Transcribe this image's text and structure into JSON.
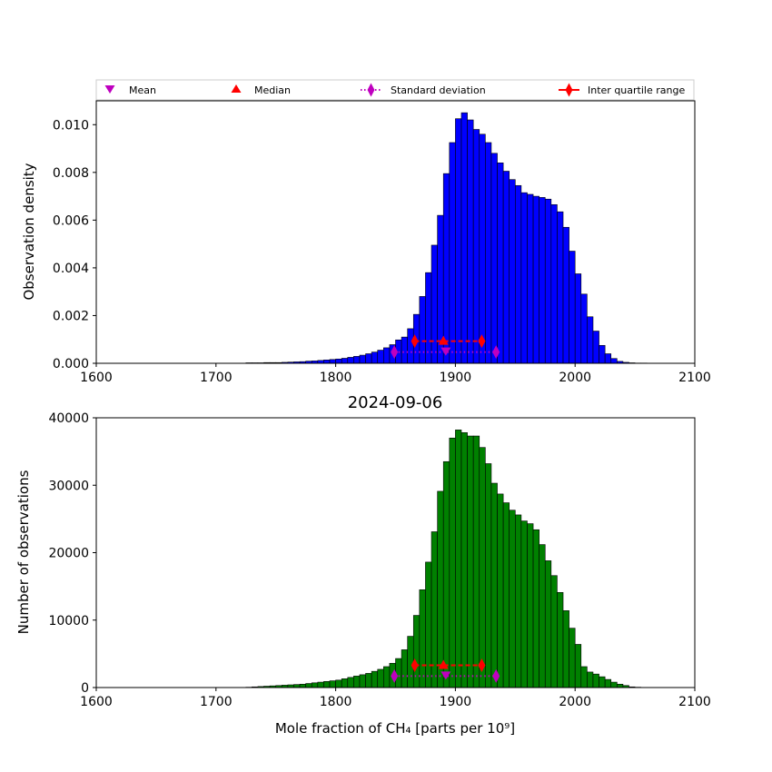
{
  "colors": {
    "density_bars": "#0000ff",
    "count_bars": "#008000",
    "bar_edge": "#000000",
    "mean_marker": "#bf00bf",
    "std_marker": "#bf00bf",
    "median_marker": "#ff0000",
    "iqr_marker": "#ff0000"
  },
  "legend": {
    "placement": "top, above upper chart",
    "entries": [
      {
        "label": "Mean",
        "marker": "triangle-down",
        "color": "#bf00bf"
      },
      {
        "label": "Median",
        "marker": "triangle-up",
        "color": "#ff0000"
      },
      {
        "label": "Standard deviation",
        "marker": "diamond-dotted-line",
        "color": "#bf00bf"
      },
      {
        "label": "Inter quartile range",
        "marker": "diamond-solid-line",
        "color": "#ff0000"
      }
    ]
  },
  "chart_data": [
    {
      "type": "bar",
      "title": "",
      "xlabel": "",
      "ylabel": "Observation density",
      "xlim": [
        1600,
        2100
      ],
      "ylim": [
        0,
        0.011
      ],
      "xticks": [
        "1600",
        "1700",
        "1800",
        "1900",
        "2000",
        "2100"
      ],
      "yticks": [
        "0.000",
        "0.002",
        "0.004",
        "0.006",
        "0.008",
        "0.010"
      ],
      "yticks_values": [
        0,
        0.002,
        0.004,
        0.006,
        0.008,
        0.01
      ],
      "bin_start": 1600,
      "bin_width": 5,
      "values": [
        0,
        0,
        0,
        0,
        0,
        0,
        0,
        0,
        0,
        0,
        0,
        0,
        0,
        0,
        0,
        0,
        0,
        0,
        0,
        0,
        0,
        0,
        0,
        0,
        0,
        2e-05,
        2e-05,
        2e-05,
        3e-05,
        3e-05,
        3e-05,
        4e-05,
        5e-05,
        6e-05,
        7e-05,
        9e-05,
        0.0001,
        0.00012,
        0.00014,
        0.00016,
        0.00018,
        0.00021,
        0.00025,
        0.00029,
        0.00034,
        0.0004,
        0.00047,
        0.00055,
        0.00065,
        0.00078,
        0.00098,
        0.0011,
        0.00145,
        0.00205,
        0.0028,
        0.0038,
        0.00495,
        0.0062,
        0.00795,
        0.00925,
        0.01025,
        0.0105,
        0.0102,
        0.0098,
        0.0096,
        0.00925,
        0.0088,
        0.0084,
        0.00805,
        0.0077,
        0.00745,
        0.00715,
        0.00708,
        0.007,
        0.00695,
        0.00688,
        0.00665,
        0.00635,
        0.0057,
        0.0047,
        0.00375,
        0.0029,
        0.00195,
        0.00135,
        0.00075,
        0.0004,
        0.0002,
        8e-05,
        4e-05,
        2e-05,
        1e-05,
        1e-05,
        0,
        0,
        0,
        0,
        0,
        0,
        0,
        0
      ],
      "summary": {
        "mean": 1892,
        "std_low": 1849,
        "std_high": 1934,
        "std_y": 0.00047,
        "median": 1890,
        "iqr_low": 1866,
        "iqr_high": 1922,
        "iqr_y": 0.00093
      }
    },
    {
      "type": "bar",
      "title": "2024-09-06",
      "xlabel": "Mole fraction of CH₄ [parts per 10⁹]",
      "ylabel": "Number of observations",
      "xlim": [
        1600,
        2100
      ],
      "ylim": [
        0,
        40000
      ],
      "xticks": [
        "1600",
        "1700",
        "1800",
        "1900",
        "2000",
        "2100"
      ],
      "yticks": [
        "0",
        "10000",
        "20000",
        "30000",
        "40000"
      ],
      "yticks_values": [
        0,
        10000,
        20000,
        30000,
        40000
      ],
      "bin_start": 1600,
      "bin_width": 5,
      "values": [
        0,
        0,
        0,
        0,
        0,
        0,
        0,
        0,
        0,
        0,
        0,
        0,
        0,
        0,
        0,
        0,
        0,
        0,
        0,
        0,
        0,
        0,
        0,
        0,
        0,
        50,
        100,
        150,
        200,
        250,
        300,
        350,
        400,
        450,
        500,
        600,
        700,
        800,
        900,
        1000,
        1100,
        1300,
        1500,
        1700,
        1900,
        2100,
        2400,
        2700,
        3100,
        3600,
        4300,
        5600,
        7600,
        10700,
        14500,
        18600,
        23100,
        29100,
        33500,
        37000,
        38200,
        37800,
        37300,
        37300,
        35600,
        33200,
        30300,
        28700,
        27400,
        26300,
        25600,
        24700,
        24300,
        23400,
        21200,
        18800,
        16600,
        14100,
        11400,
        8800,
        6400,
        3100,
        2300,
        2000,
        1600,
        1200,
        800,
        500,
        300,
        100,
        50,
        20,
        0,
        0,
        0,
        0,
        0,
        0,
        0,
        0
      ],
      "summary": {
        "mean": 1892,
        "std_low": 1849,
        "std_high": 1934,
        "std_y": 1700,
        "median": 1890,
        "iqr_low": 1866,
        "iqr_high": 1922,
        "iqr_y": 3300
      }
    }
  ]
}
